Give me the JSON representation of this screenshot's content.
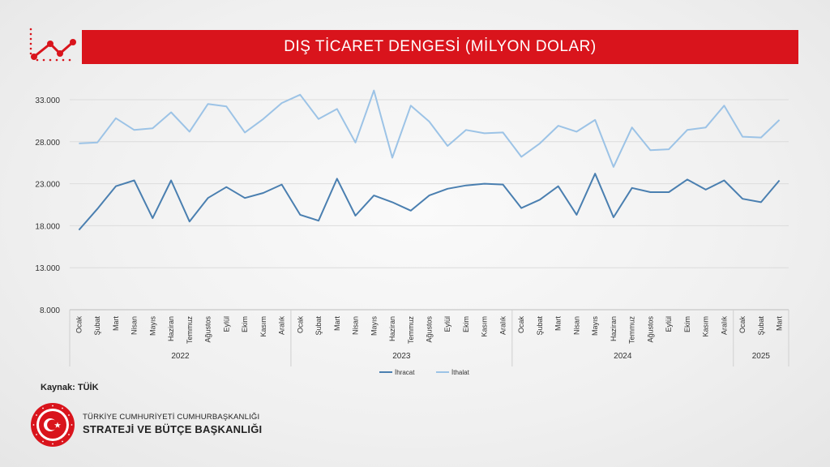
{
  "header": {
    "title": "DIŞ TİCARET DENGESİ (MİLYON DOLAR)"
  },
  "source": "Kaynak: TÜİK",
  "footer": {
    "line1": "TÜRKİYE CUMHURİYETİ CUMHURBAŞKANLIĞI",
    "line2": "STRATEJİ VE BÜTÇE BAŞKANLIĞI"
  },
  "colors": {
    "accent": "#d9141c",
    "ihracat": "#4a7fb0",
    "ithalat": "#9cc3e6"
  },
  "chart_data": {
    "type": "line",
    "title": "DIŞ TİCARET DENGESİ (MİLYON DOLAR)",
    "ylim": [
      8000,
      33000
    ],
    "yticks": [
      "8.000",
      "13.000",
      "18.000",
      "23.000",
      "28.000",
      "33.000"
    ],
    "grid": true,
    "legend_position": "bottom",
    "categories": [
      "Ocak",
      "Şubat",
      "Mart",
      "Nisan",
      "Mayıs",
      "Haziran",
      "Temmuz",
      "Ağustos",
      "Eylül",
      "Ekim",
      "Kasım",
      "Aralık",
      "Ocak",
      "Şubat",
      "Mart",
      "Nisan",
      "Mayıs",
      "Haziran",
      "Temmuz",
      "Ağustos",
      "Eylül",
      "Ekim",
      "Kasım",
      "Aralık",
      "Ocak",
      "Şubat",
      "Mart",
      "Nisan",
      "Mayıs",
      "Haziran",
      "Temmuz",
      "Ağustos",
      "Eylül",
      "Ekim",
      "Kasım",
      "Aralık",
      "Ocak",
      "Şubat",
      "Mart"
    ],
    "years": [
      {
        "label": "2022",
        "count": 12
      },
      {
        "label": "2023",
        "count": 12
      },
      {
        "label": "2024",
        "count": 12
      },
      {
        "label": "2025",
        "count": 3
      }
    ],
    "series": [
      {
        "name": "İhracat",
        "values": [
          17500,
          20000,
          22700,
          23400,
          18900,
          23400,
          18500,
          21300,
          22600,
          21300,
          21900,
          22900,
          19300,
          18600,
          23600,
          19200,
          21600,
          20800,
          19800,
          21600,
          22400,
          22800,
          23000,
          22900,
          20100,
          21100,
          22700,
          19300,
          24200,
          19000,
          22500,
          22000,
          22000,
          23500,
          22300,
          23400,
          21200,
          20800,
          23400
        ]
      },
      {
        "name": "İthalat",
        "values": [
          27800,
          27900,
          30800,
          29400,
          29600,
          31500,
          29200,
          32500,
          32200,
          29100,
          30700,
          32600,
          33600,
          30700,
          31900,
          27900,
          34100,
          26100,
          32300,
          30400,
          27500,
          29400,
          29000,
          29100,
          26200,
          27800,
          29900,
          29200,
          30600,
          25000,
          29700,
          27000,
          27100,
          29400,
          29700,
          32300,
          28600,
          28500,
          30600
        ]
      }
    ]
  }
}
